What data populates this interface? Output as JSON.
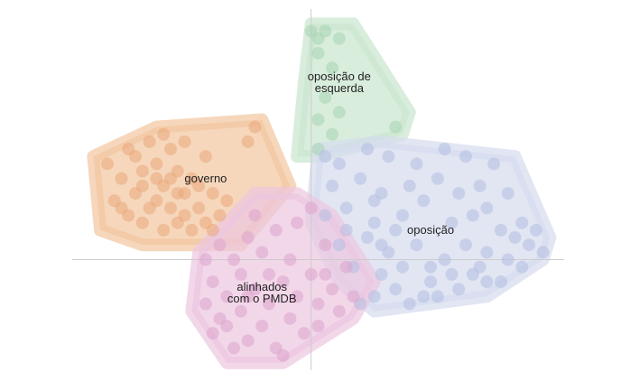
{
  "chart_data": {
    "type": "scatter",
    "xlim": [
      -3.4,
      3.6
    ],
    "ylim": [
      -1.5,
      3.4
    ],
    "grid": false,
    "axes": "crosshair-at-origin",
    "clusters": [
      {
        "name": "governo",
        "label_lines": [
          "governo"
        ],
        "label_at": [
          -1.5,
          1.1
        ],
        "fill": "#f2c6a0",
        "point": "#e9a77a",
        "hull": [
          [
            -2.4,
            0.2
          ],
          [
            -3.0,
            0.4
          ],
          [
            -3.1,
            1.4
          ],
          [
            -2.2,
            1.8
          ],
          [
            -0.7,
            1.9
          ],
          [
            -0.3,
            1.0
          ],
          [
            -1.0,
            0.2
          ]
        ],
        "points": [
          [
            -2.9,
            1.3
          ],
          [
            -2.8,
            0.8
          ],
          [
            -2.7,
            1.1
          ],
          [
            -2.6,
            0.6
          ],
          [
            -2.6,
            1.5
          ],
          [
            -2.5,
            0.9
          ],
          [
            -2.4,
            1.2
          ],
          [
            -2.4,
            0.5
          ],
          [
            -2.3,
            1.6
          ],
          [
            -2.2,
            0.8
          ],
          [
            -2.2,
            1.3
          ],
          [
            -2.1,
            0.4
          ],
          [
            -2.1,
            1.0
          ],
          [
            -2.0,
            1.5
          ],
          [
            -2.0,
            0.7
          ],
          [
            -1.9,
            1.2
          ],
          [
            -1.9,
            0.5
          ],
          [
            -1.8,
            0.9
          ],
          [
            -1.8,
            1.6
          ],
          [
            -1.7,
            0.4
          ],
          [
            -1.7,
            1.1
          ],
          [
            -1.6,
            0.7
          ],
          [
            -1.5,
            0.5
          ],
          [
            -1.5,
            1.4
          ],
          [
            -1.4,
            0.9
          ],
          [
            -1.3,
            0.6
          ],
          [
            -2.5,
            1.4
          ],
          [
            -2.3,
            0.7
          ],
          [
            -2.0,
            1.1
          ],
          [
            -1.9,
            0.9
          ],
          [
            -1.8,
            0.6
          ],
          [
            -1.6,
            1.0
          ],
          [
            -1.4,
            0.4
          ],
          [
            -2.7,
            0.7
          ],
          [
            -2.2,
            1.1
          ],
          [
            -1.2,
            0.8
          ],
          [
            -0.9,
            1.6
          ],
          [
            -0.8,
            1.8
          ],
          [
            -2.1,
            1.7
          ],
          [
            -2.4,
            1.0
          ]
        ]
      },
      {
        "name": "oposição de esquerda",
        "label_lines": [
          "oposição de",
          "esquerda"
        ],
        "label_at": [
          0.4,
          2.4
        ],
        "fill": "#c9e6cf",
        "point": "#a6d3b1",
        "hull": [
          [
            -0.2,
            1.4
          ],
          [
            -0.1,
            2.4
          ],
          [
            0.0,
            3.2
          ],
          [
            0.6,
            3.2
          ],
          [
            1.4,
            2.0
          ],
          [
            1.3,
            1.7
          ],
          [
            0.1,
            1.4
          ]
        ],
        "points": [
          [
            0.0,
            3.1
          ],
          [
            0.1,
            3.0
          ],
          [
            0.2,
            3.1
          ],
          [
            0.4,
            3.0
          ],
          [
            0.1,
            2.8
          ],
          [
            0.3,
            2.6
          ],
          [
            0.2,
            2.2
          ],
          [
            0.4,
            2.0
          ],
          [
            0.1,
            1.9
          ],
          [
            1.2,
            1.8
          ],
          [
            0.1,
            1.5
          ],
          [
            0.3,
            1.7
          ]
        ]
      },
      {
        "name": "oposição",
        "label_lines": [
          "oposição"
        ],
        "label_at": [
          1.7,
          0.4
        ],
        "fill": "#d5dbee",
        "point": "#b2bde0",
        "hull": [
          [
            0.1,
            1.5
          ],
          [
            0.0,
            0.5
          ],
          [
            0.4,
            -0.3
          ],
          [
            0.9,
            -0.7
          ],
          [
            2.5,
            -0.5
          ],
          [
            3.3,
            0.0
          ],
          [
            3.4,
            0.3
          ],
          [
            2.9,
            1.4
          ],
          [
            1.0,
            1.6
          ]
        ],
        "points": [
          [
            0.2,
            1.4
          ],
          [
            0.4,
            1.3
          ],
          [
            0.8,
            1.5
          ],
          [
            1.1,
            1.4
          ],
          [
            1.5,
            1.3
          ],
          [
            1.9,
            1.5
          ],
          [
            2.2,
            1.4
          ],
          [
            2.6,
            1.3
          ],
          [
            0.3,
            1.0
          ],
          [
            0.7,
            1.1
          ],
          [
            1.0,
            0.9
          ],
          [
            1.4,
            1.0
          ],
          [
            1.8,
            1.1
          ],
          [
            2.1,
            0.9
          ],
          [
            2.4,
            1.0
          ],
          [
            2.8,
            0.9
          ],
          [
            0.2,
            0.6
          ],
          [
            0.5,
            0.7
          ],
          [
            0.9,
            0.5
          ],
          [
            1.3,
            0.6
          ],
          [
            2.0,
            0.5
          ],
          [
            2.3,
            0.6
          ],
          [
            2.7,
            0.4
          ],
          [
            3.0,
            0.5
          ],
          [
            0.4,
            0.2
          ],
          [
            0.8,
            0.3
          ],
          [
            1.1,
            0.1
          ],
          [
            1.5,
            0.2
          ],
          [
            1.9,
            0.0
          ],
          [
            2.2,
            0.2
          ],
          [
            2.5,
            0.1
          ],
          [
            2.8,
            0.0
          ],
          [
            3.1,
            0.2
          ],
          [
            3.3,
            0.1
          ],
          [
            0.6,
            -0.1
          ],
          [
            1.0,
            -0.2
          ],
          [
            1.3,
            -0.1
          ],
          [
            1.7,
            -0.3
          ],
          [
            2.0,
            -0.2
          ],
          [
            2.4,
            -0.1
          ],
          [
            2.7,
            -0.3
          ],
          [
            3.0,
            -0.1
          ],
          [
            0.9,
            -0.5
          ],
          [
            1.2,
            -0.4
          ],
          [
            1.6,
            -0.5
          ],
          [
            2.1,
            -0.4
          ],
          [
            2.5,
            -0.3
          ],
          [
            0.7,
            -0.6
          ],
          [
            1.4,
            -0.6
          ],
          [
            1.8,
            -0.5
          ],
          [
            2.9,
            0.3
          ],
          [
            1.2,
            0.4
          ],
          [
            0.5,
            0.4
          ],
          [
            1.6,
            0.8
          ],
          [
            2.5,
            0.7
          ],
          [
            0.9,
            0.8
          ],
          [
            1.7,
            -0.1
          ],
          [
            2.3,
            -0.2
          ],
          [
            3.2,
            0.4
          ],
          [
            1.0,
            0.2
          ]
        ]
      },
      {
        "name": "alinhados com o PMDB",
        "label_lines": [
          "alinhados",
          "com o PMDB"
        ],
        "label_at": [
          -0.7,
          -0.45
        ],
        "fill": "#ecc6e0",
        "point": "#dda4cd",
        "hull": [
          [
            -1.6,
            0.1
          ],
          [
            -1.7,
            -0.7
          ],
          [
            -1.2,
            -1.4
          ],
          [
            -0.4,
            -1.4
          ],
          [
            0.6,
            -0.8
          ],
          [
            0.9,
            -0.3
          ],
          [
            0.3,
            0.6
          ],
          [
            -0.2,
            0.9
          ],
          [
            -0.8,
            0.9
          ]
        ],
        "points": [
          [
            -1.5,
            0.0
          ],
          [
            -1.4,
            -0.3
          ],
          [
            -1.5,
            -0.6
          ],
          [
            -1.3,
            0.2
          ],
          [
            -1.2,
            -0.5
          ],
          [
            -1.2,
            -0.9
          ],
          [
            -1.1,
            0.0
          ],
          [
            -1.0,
            -0.2
          ],
          [
            -1.0,
            -0.7
          ],
          [
            -0.9,
            -1.1
          ],
          [
            -0.9,
            0.3
          ],
          [
            -0.8,
            -0.4
          ],
          [
            -0.7,
            -0.9
          ],
          [
            -0.7,
            0.1
          ],
          [
            -0.6,
            -0.6
          ],
          [
            -0.5,
            -1.2
          ],
          [
            -0.5,
            0.4
          ],
          [
            -0.4,
            -0.3
          ],
          [
            -0.3,
            -0.8
          ],
          [
            -0.3,
            0.0
          ],
          [
            -0.2,
            -0.5
          ],
          [
            -0.1,
            -1.0
          ],
          [
            0.0,
            -0.2
          ],
          [
            0.1,
            -0.6
          ],
          [
            0.2,
            0.2
          ],
          [
            0.3,
            -0.4
          ],
          [
            0.4,
            -0.7
          ],
          [
            0.5,
            -0.1
          ],
          [
            -1.3,
            -0.8
          ],
          [
            -1.1,
            -1.2
          ],
          [
            -0.8,
            0.6
          ],
          [
            -0.6,
            -0.2
          ],
          [
            -0.4,
            -1.3
          ],
          [
            -0.2,
            0.5
          ],
          [
            0.1,
            -0.9
          ],
          [
            0.0,
            0.7
          ],
          [
            -0.9,
            -0.5
          ],
          [
            -1.4,
            -1.0
          ],
          [
            0.6,
            -0.5
          ],
          [
            0.2,
            -0.2
          ]
        ]
      }
    ]
  }
}
